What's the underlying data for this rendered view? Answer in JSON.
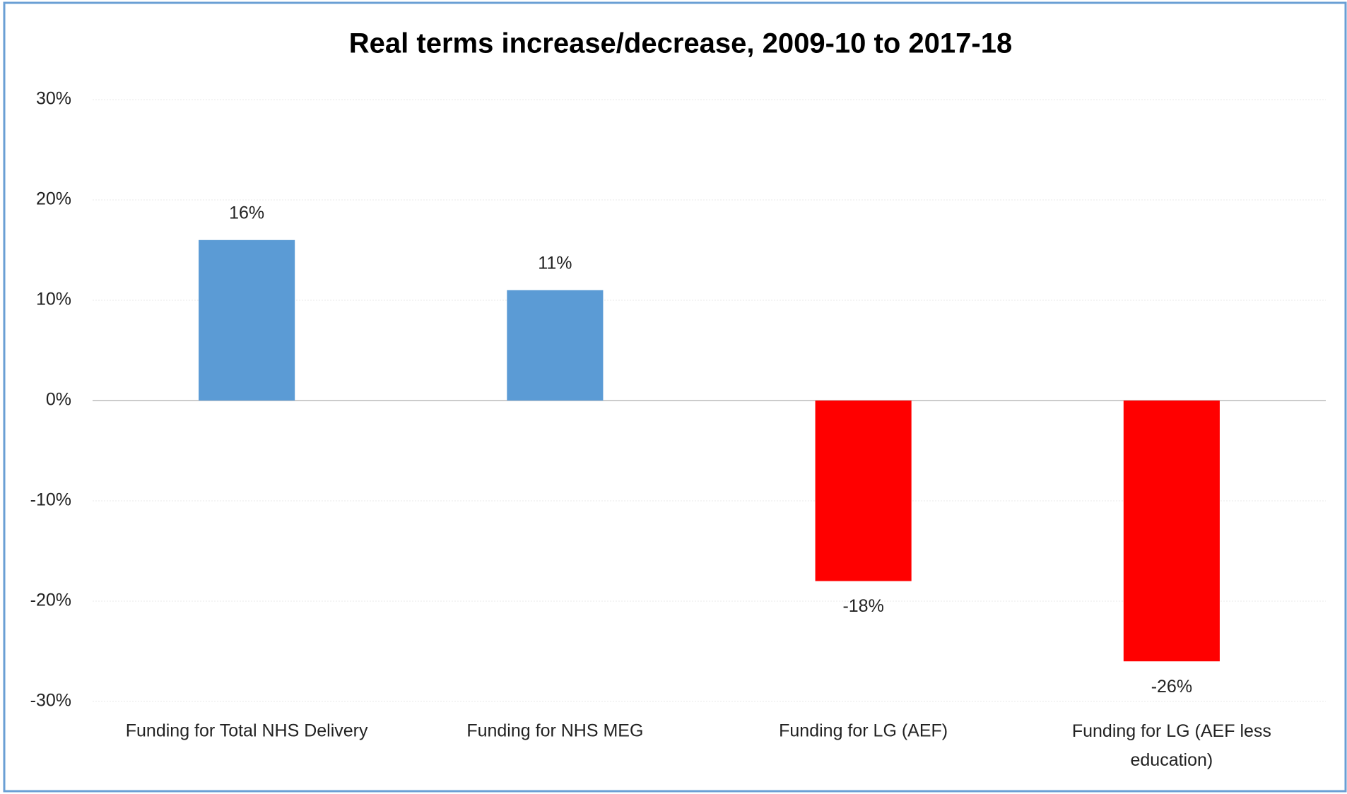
{
  "chart_data": {
    "type": "bar",
    "title": "Real terms increase/decrease, 2009-10 to 2017-18",
    "categories": [
      "Funding for Total NHS Delivery",
      "Funding for NHS MEG",
      "Funding for LG (AEF)",
      "Funding for LG (AEF less education)"
    ],
    "values": [
      16,
      11,
      -18,
      -26
    ],
    "value_labels": [
      "16%",
      "11%",
      "-18%",
      "-26%"
    ],
    "colors": [
      "#5b9bd5",
      "#5b9bd5",
      "#ff0000",
      "#ff0000"
    ],
    "ylim": [
      -30,
      30
    ],
    "yticks": [
      {
        "value": -30,
        "label": "-30%"
      },
      {
        "value": -20,
        "label": "-20%"
      },
      {
        "value": -10,
        "label": "-10%"
      },
      {
        "value": 0,
        "label": "0%"
      },
      {
        "value": 10,
        "label": "10%"
      },
      {
        "value": 20,
        "label": "20%"
      },
      {
        "value": 30,
        "label": "30%"
      }
    ],
    "grid": true
  }
}
